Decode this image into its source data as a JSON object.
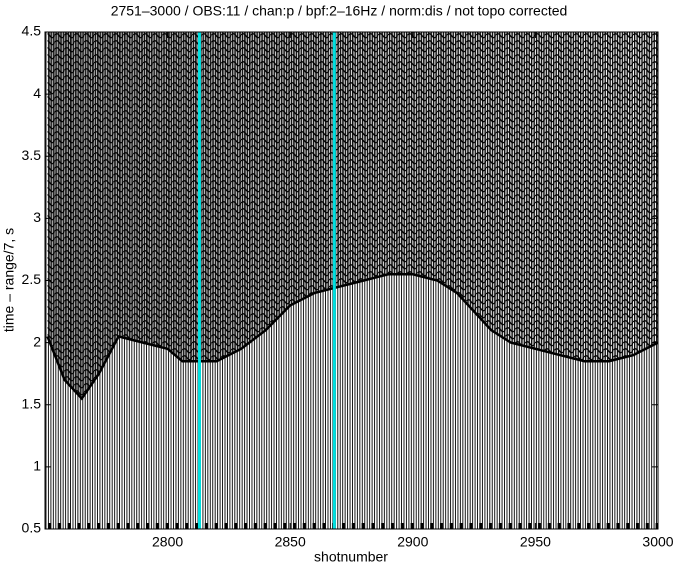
{
  "chart_data": {
    "type": "wiggle",
    "title": "2751–3000 / OBS:11 / chan:p / bpf:2–16Hz / norm:dis / not topo corrected",
    "xlabel": "shotnumber",
    "ylabel": "time – range/7, s",
    "xlim": [
      2750,
      3000
    ],
    "xticks": [
      2800,
      2850,
      2900,
      2950,
      3000
    ],
    "ylim": [
      0.5,
      4.5
    ],
    "yticks": [
      0.5,
      1,
      1.5,
      2,
      2.5,
      3,
      3.5,
      4,
      4.5
    ],
    "first_arrival": {
      "x": [
        2751,
        2758,
        2765,
        2772,
        2780,
        2790,
        2800,
        2806,
        2812,
        2820,
        2830,
        2840,
        2850,
        2860,
        2870,
        2880,
        2890,
        2900,
        2910,
        2918,
        2925,
        2932,
        2940,
        2950,
        2960,
        2970,
        2980,
        2990,
        3000
      ],
      "y": [
        2.05,
        1.7,
        1.55,
        1.75,
        2.05,
        2.0,
        1.95,
        1.85,
        1.85,
        1.85,
        1.95,
        2.1,
        2.3,
        2.4,
        2.45,
        2.5,
        2.55,
        2.55,
        2.5,
        2.4,
        2.25,
        2.1,
        2.0,
        1.95,
        1.9,
        1.85,
        1.85,
        1.9,
        2.0
      ]
    },
    "trace_color": "#000000",
    "highlight_x": [
      2813,
      2868
    ],
    "highlight_color": "#00e0e0"
  }
}
